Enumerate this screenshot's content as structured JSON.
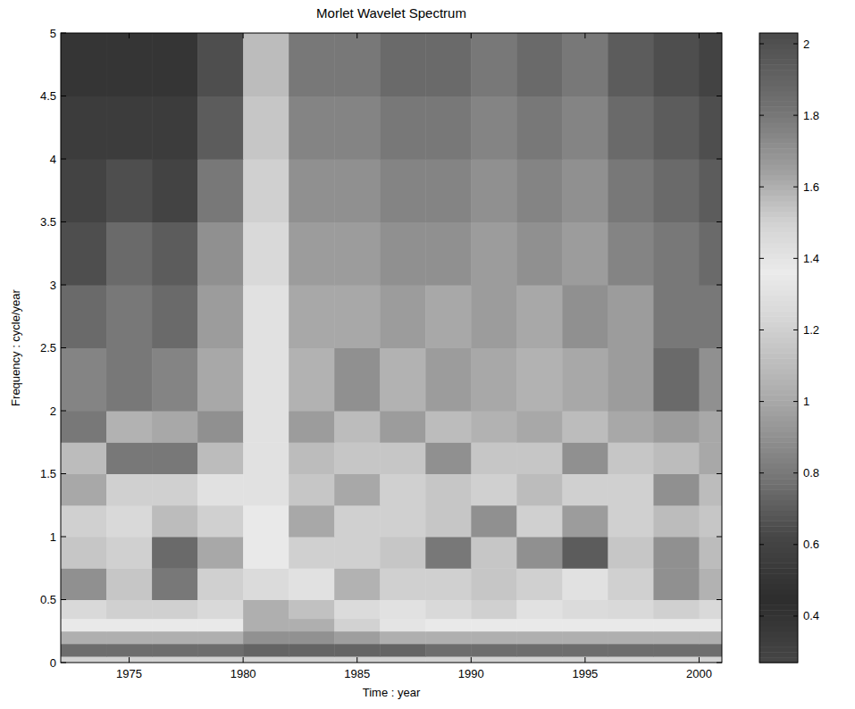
{
  "chart_data": {
    "type": "heatmap",
    "title": "Morlet Wavelet Spectrum",
    "x_label": "Time : year",
    "y_label": "Frequency : cycle/year",
    "xlim": [
      1972,
      2001
    ],
    "xticks": [
      1975,
      1980,
      1985,
      1990,
      1995,
      2000
    ],
    "ylim": [
      0,
      5
    ],
    "yticks": [
      0,
      0.5,
      1,
      1.5,
      2,
      2.5,
      3,
      3.5,
      4,
      4.5,
      5
    ],
    "x_bins": [
      1972,
      1974,
      1976,
      1978,
      1980,
      1982,
      1984,
      1986,
      1988,
      1990,
      1992,
      1994,
      1996,
      1998,
      2000,
      2001
    ],
    "y_bins": [
      0,
      0.05,
      0.15,
      0.25,
      0.35,
      0.5,
      0.75,
      1,
      1.25,
      1.5,
      1.75,
      2,
      2.5,
      3,
      3.5,
      4,
      4.5,
      5
    ],
    "values": [
      [
        1.5,
        1.5,
        1.5,
        1.5,
        1.5,
        1.5,
        1.5,
        1.5,
        1.5,
        1.5,
        1.5,
        1.5,
        1.5,
        1.5,
        1.5
      ],
      [
        1.85,
        1.85,
        1.85,
        1.85,
        1.9,
        1.9,
        1.9,
        1.9,
        1.85,
        1.85,
        1.85,
        1.85,
        1.85,
        1.85,
        1.85
      ],
      [
        1.6,
        1.6,
        1.6,
        1.6,
        1.7,
        1.7,
        1.65,
        1.6,
        1.6,
        1.6,
        1.6,
        1.6,
        1.6,
        1.6,
        1.6
      ],
      [
        1.35,
        1.35,
        1.35,
        1.35,
        1.6,
        1.6,
        1.5,
        1.4,
        1.35,
        1.35,
        1.35,
        1.35,
        1.35,
        1.35,
        1.35
      ],
      [
        1.25,
        1.2,
        1.2,
        1.25,
        1.6,
        1.55,
        1.45,
        1.3,
        1.25,
        1.2,
        1.3,
        1.45,
        1.25,
        1.2,
        1.25
      ],
      [
        0.9,
        1.15,
        0.8,
        1.2,
        1.45,
        1.3,
        1.05,
        1.2,
        1.2,
        1.15,
        1.2,
        1.3,
        1.2,
        0.9,
        1.05
      ],
      [
        1.15,
        1.2,
        0.75,
        1.0,
        1.35,
        1.2,
        1.2,
        1.15,
        0.8,
        1.15,
        0.9,
        0.7,
        1.15,
        0.9,
        1.1
      ],
      [
        1.2,
        1.25,
        1.1,
        1.2,
        1.35,
        1.0,
        1.2,
        1.2,
        1.15,
        0.9,
        1.2,
        0.95,
        1.2,
        1.1,
        1.15
      ],
      [
        1.0,
        1.2,
        1.2,
        1.3,
        1.3,
        1.15,
        1.0,
        1.2,
        1.15,
        1.2,
        1.1,
        1.2,
        1.2,
        0.9,
        1.1
      ],
      [
        1.1,
        0.8,
        0.8,
        1.1,
        1.3,
        1.1,
        1.15,
        1.15,
        0.9,
        1.15,
        1.15,
        0.9,
        1.15,
        1.1,
        1.0
      ],
      [
        0.8,
        1.05,
        1.0,
        0.9,
        1.3,
        0.95,
        1.1,
        0.95,
        1.1,
        1.05,
        1.0,
        1.1,
        1.0,
        0.95,
        1.0
      ],
      [
        0.85,
        0.8,
        0.85,
        1.0,
        1.3,
        1.05,
        0.9,
        1.05,
        0.95,
        1.0,
        1.05,
        1.0,
        0.95,
        0.75,
        0.9
      ],
      [
        0.75,
        0.8,
        0.75,
        0.95,
        1.3,
        1.0,
        1.0,
        0.95,
        1.0,
        0.95,
        1.0,
        0.9,
        0.95,
        0.8,
        0.8
      ],
      [
        0.65,
        0.75,
        0.7,
        0.9,
        1.25,
        0.95,
        0.95,
        0.9,
        0.9,
        0.95,
        0.9,
        0.95,
        0.85,
        0.8,
        0.75
      ],
      [
        0.6,
        0.65,
        0.6,
        0.8,
        1.2,
        0.9,
        0.9,
        0.85,
        0.85,
        0.9,
        0.85,
        0.9,
        0.8,
        0.75,
        0.7
      ],
      [
        0.55,
        0.55,
        0.55,
        0.7,
        1.15,
        0.85,
        0.85,
        0.8,
        0.8,
        0.85,
        0.8,
        0.85,
        0.75,
        0.7,
        0.65
      ],
      [
        0.5,
        0.5,
        0.5,
        0.65,
        1.1,
        0.8,
        0.8,
        0.75,
        0.75,
        0.8,
        0.75,
        0.8,
        0.7,
        0.65,
        0.6
      ]
    ],
    "colorbar": {
      "range": [
        0.27,
        2.03
      ],
      "ticks": [
        0.4,
        0.6,
        0.8,
        1,
        1.2,
        1.4,
        1.6,
        1.8,
        2
      ]
    }
  }
}
